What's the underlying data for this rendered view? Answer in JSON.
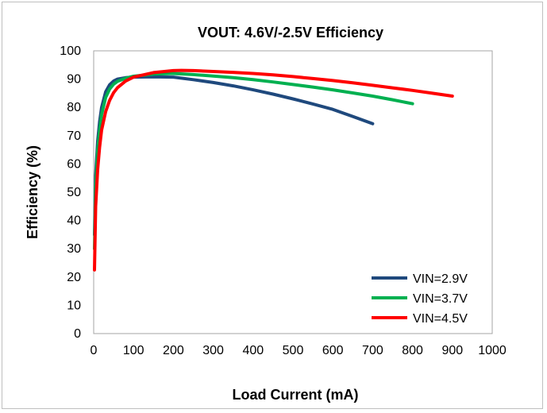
{
  "chart_data": {
    "type": "line",
    "title": "VOUT: 4.6V/-2.5V Efficiency",
    "xlabel": "Load Current (mA)",
    "ylabel": "Efficiency (%)",
    "xlim": [
      0,
      1000
    ],
    "ylim": [
      0,
      100
    ],
    "xticks": [
      0,
      100,
      200,
      300,
      400,
      500,
      600,
      700,
      800,
      900,
      1000
    ],
    "yticks": [
      0,
      10,
      20,
      30,
      40,
      50,
      60,
      70,
      80,
      90,
      100
    ],
    "grid": false,
    "legend_position": "bottom-right",
    "series": [
      {
        "name": "VIN=2.9V",
        "color": "#1f497d",
        "x": [
          2,
          5,
          10,
          15,
          20,
          30,
          40,
          50,
          60,
          80,
          100,
          150,
          200,
          250,
          300,
          350,
          400,
          450,
          500,
          550,
          600,
          650,
          700
        ],
        "y": [
          35,
          56,
          68,
          75,
          80,
          85.5,
          88,
          89.3,
          90,
          90.5,
          90.7,
          90.8,
          90.7,
          89.8,
          88.8,
          87.6,
          86.2,
          84.7,
          83,
          81.2,
          79.3,
          76.8,
          74.2
        ]
      },
      {
        "name": "VIN=3.7V",
        "color": "#00b050",
        "x": [
          2,
          5,
          10,
          15,
          20,
          30,
          40,
          50,
          60,
          80,
          100,
          150,
          200,
          250,
          300,
          350,
          400,
          450,
          500,
          550,
          600,
          650,
          700,
          750,
          800
        ],
        "y": [
          30,
          52,
          65,
          72,
          77.5,
          83.5,
          86.5,
          88.2,
          89.2,
          90.3,
          91,
          91.8,
          92,
          91.6,
          91.1,
          90.5,
          89.8,
          89,
          88.1,
          87.2,
          86.2,
          85.1,
          84,
          82.7,
          81.3
        ]
      },
      {
        "name": "VIN=4.5V",
        "color": "#ff0000",
        "x": [
          2,
          5,
          10,
          15,
          20,
          30,
          40,
          50,
          60,
          80,
          100,
          150,
          200,
          220,
          250,
          300,
          350,
          400,
          450,
          500,
          550,
          600,
          650,
          700,
          750,
          800,
          850,
          900
        ],
        "y": [
          22.5,
          45,
          58,
          66,
          72,
          78.5,
          82.5,
          85.2,
          87,
          89.3,
          90.7,
          92.3,
          93,
          93.1,
          93,
          92.7,
          92.4,
          92,
          91.5,
          90.9,
          90.2,
          89.5,
          88.7,
          87.8,
          86.9,
          86,
          85,
          84
        ]
      }
    ]
  }
}
